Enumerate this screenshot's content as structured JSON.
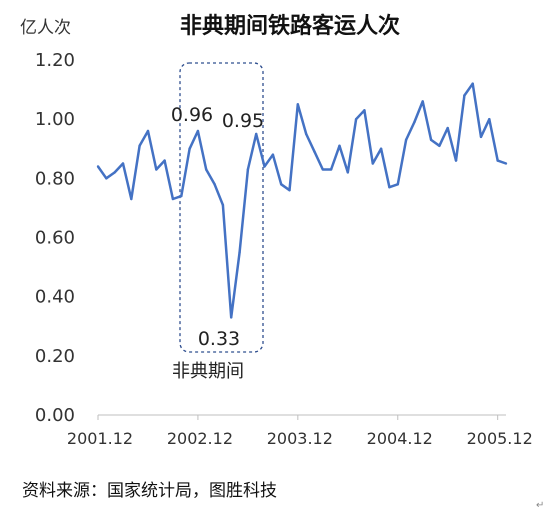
{
  "chart_data": {
    "type": "line",
    "title": "非典期间铁路客运人次",
    "ylabel": "亿人次",
    "xlabel": "",
    "ylim": [
      0,
      1.2
    ],
    "yticks": [
      "0.00",
      "0.20",
      "0.40",
      "0.60",
      "0.80",
      "1.00",
      "1.20"
    ],
    "xticks": [
      "2001.12",
      "2002.12",
      "2003.12",
      "2004.12",
      "2005.12"
    ],
    "grid": false,
    "series_color": "#4472C4",
    "series": [
      {
        "values": [
          0.84,
          0.8,
          0.82,
          0.85,
          0.73,
          0.91,
          0.96,
          0.83,
          0.86,
          0.73,
          0.74,
          0.9,
          0.96,
          0.83,
          0.78,
          0.71,
          0.33,
          0.55,
          0.83,
          0.95,
          0.84,
          0.88,
          0.78,
          0.76,
          1.05,
          0.95,
          0.89,
          0.83,
          0.83,
          0.91,
          0.82,
          1.0,
          1.03,
          0.85,
          0.9,
          0.77,
          0.78,
          0.93,
          0.99,
          1.06,
          0.93,
          0.91,
          0.97,
          0.86,
          1.08,
          1.12,
          0.94,
          1.0,
          0.86,
          0.85
        ]
      }
    ],
    "annotations": {
      "peak1": "0.96",
      "peak2": "0.95",
      "trough": "0.33",
      "period_label": "非典期间"
    }
  },
  "source": "资料来源：国家统计局，图胜科技",
  "corner_mark": "↵"
}
